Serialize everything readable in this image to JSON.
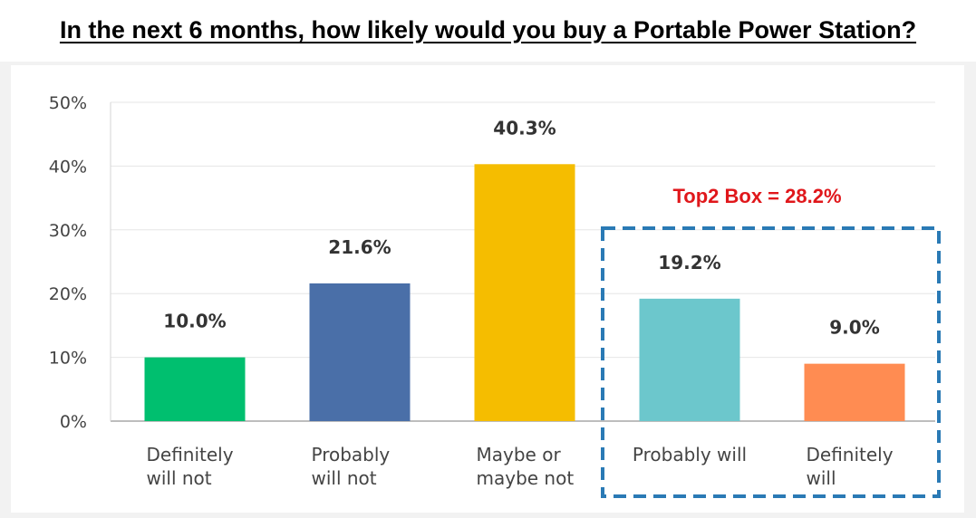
{
  "chart_data": {
    "type": "bar",
    "title": "In the next 6 months, how likely would you buy a Portable Power Station?",
    "categories": [
      [
        "Definitely",
        "will not"
      ],
      [
        "Probably",
        "will not"
      ],
      [
        "Maybe or",
        "maybe not"
      ],
      [
        "Probably will"
      ],
      [
        "Definitely",
        "will"
      ]
    ],
    "values": [
      10.0,
      21.6,
      40.3,
      19.2,
      9.0
    ],
    "value_labels": [
      "10.0%",
      "21.6%",
      "40.3%",
      "19.2%",
      "9.0%"
    ],
    "colors": [
      "#00bf6f",
      "#4a6fa8",
      "#f5bd00",
      "#6cc7cc",
      "#ff8c52"
    ],
    "ylim": [
      0,
      50
    ],
    "yticks": [
      "0%",
      "10%",
      "20%",
      "30%",
      "40%",
      "50%"
    ],
    "ytick_values": [
      0,
      10,
      20,
      30,
      40,
      50
    ],
    "xlabel": "",
    "ylabel": "",
    "grid": true,
    "annotation": {
      "text": "Top2 Box = 28.2%",
      "color": "#e0171b",
      "box_color": "#2a7ab5",
      "covers_categories": [
        3,
        4
      ]
    }
  }
}
